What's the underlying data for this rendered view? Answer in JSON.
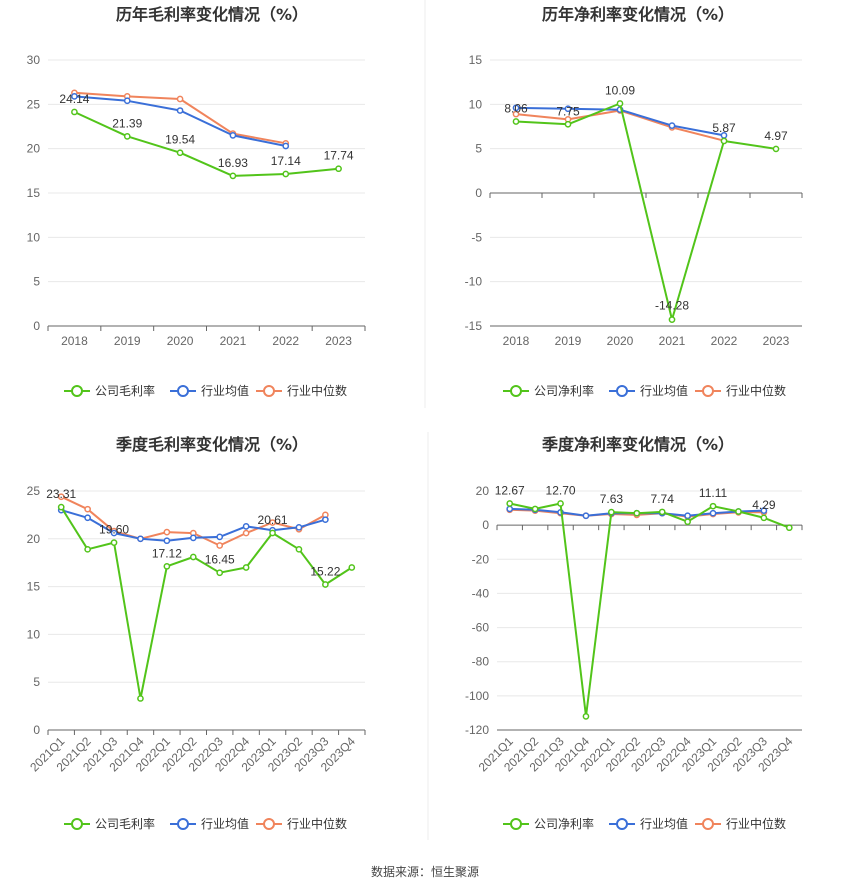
{
  "source": "数据来源：恒生聚源",
  "colors": {
    "company": "#52c41a",
    "avg": "#3a6fd8",
    "median": "#f0845c",
    "grid": "#e8e8e8",
    "axis": "#666666",
    "divider": "#eeeeee"
  },
  "legend_labels": {
    "gross_company": "公司毛利率",
    "net_company": "公司净利率",
    "avg": "行业均值",
    "median": "行业中位数"
  },
  "chart_data": [
    {
      "id": "annual-gross",
      "type": "line",
      "title": "历年毛利率变化情况（%）",
      "categories": [
        "2018",
        "2019",
        "2020",
        "2021",
        "2022",
        "2023"
      ],
      "ylim": [
        0,
        30
      ],
      "yticks": [
        0,
        5,
        10,
        15,
        20,
        25,
        30
      ],
      "grid": true,
      "legend": "bottom",
      "series": [
        {
          "key": "company",
          "name": "公司毛利率",
          "values": [
            24.14,
            21.39,
            19.54,
            16.93,
            17.14,
            17.74
          ],
          "labels": [
            "24.14",
            "21.39",
            "19.54",
            "16.93",
            "17.14",
            "17.74"
          ]
        },
        {
          "key": "avg",
          "name": "行业均值",
          "values": [
            25.9,
            25.4,
            24.3,
            21.5,
            20.3,
            null
          ]
        },
        {
          "key": "median",
          "name": "行业中位数",
          "values": [
            26.3,
            25.9,
            25.6,
            21.7,
            20.6,
            null
          ]
        }
      ]
    },
    {
      "id": "annual-net",
      "type": "line",
      "title": "历年净利率变化情况（%）",
      "categories": [
        "2018",
        "2019",
        "2020",
        "2021",
        "2022",
        "2023"
      ],
      "ylim": [
        -15,
        15
      ],
      "yticks": [
        -15,
        -10,
        -5,
        0,
        5,
        10,
        15
      ],
      "grid": true,
      "legend": "bottom",
      "series": [
        {
          "key": "company",
          "name": "公司净利率",
          "values": [
            8.06,
            7.75,
            10.09,
            -14.28,
            5.87,
            4.97
          ],
          "labels": [
            "8.06",
            "7.75",
            "10.09",
            "-14.28",
            "5.87",
            "4.97"
          ]
        },
        {
          "key": "avg",
          "name": "行业均值",
          "values": [
            9.6,
            9.5,
            9.4,
            7.6,
            6.5,
            null
          ]
        },
        {
          "key": "median",
          "name": "行业中位数",
          "values": [
            8.9,
            8.3,
            9.3,
            7.4,
            5.9,
            null
          ]
        }
      ]
    },
    {
      "id": "quarterly-gross",
      "type": "line",
      "title": "季度毛利率变化情况（%）",
      "categories": [
        "2021Q1",
        "2021Q2",
        "2021Q3",
        "2021Q4",
        "2022Q1",
        "2022Q2",
        "2022Q3",
        "2022Q4",
        "2023Q1",
        "2023Q2",
        "2023Q3",
        "2023Q4"
      ],
      "ylim": [
        0,
        25
      ],
      "yticks": [
        0,
        5,
        10,
        15,
        20,
        25
      ],
      "grid": true,
      "legend": "bottom",
      "series": [
        {
          "key": "company",
          "name": "公司毛利率",
          "values": [
            23.31,
            18.9,
            19.6,
            3.3,
            17.12,
            18.1,
            16.45,
            17.0,
            20.61,
            18.9,
            15.22,
            17.0
          ],
          "labels": [
            "23.31",
            "",
            "19.60",
            "",
            "17.12",
            "",
            "16.45",
            "",
            "20.61",
            "",
            "15.22",
            ""
          ]
        },
        {
          "key": "avg",
          "name": "行业均值",
          "values": [
            23.0,
            22.2,
            20.6,
            20.0,
            19.8,
            20.1,
            20.2,
            21.3,
            20.9,
            21.2,
            22.0,
            null
          ]
        },
        {
          "key": "median",
          "name": "行业中位数",
          "values": [
            24.4,
            23.1,
            20.8,
            20.0,
            20.7,
            20.6,
            19.3,
            20.6,
            21.7,
            21.0,
            22.5,
            null
          ]
        }
      ]
    },
    {
      "id": "quarterly-net",
      "type": "line",
      "title": "季度净利率变化情况（%）",
      "categories": [
        "2021Q1",
        "2021Q2",
        "2021Q3",
        "2021Q4",
        "2022Q1",
        "2022Q2",
        "2022Q3",
        "2022Q4",
        "2023Q1",
        "2023Q2",
        "2023Q3",
        "2023Q4"
      ],
      "ylim": [
        -120,
        20
      ],
      "yticks": [
        -120,
        -100,
        -80,
        -60,
        -40,
        -20,
        0,
        20
      ],
      "grid": true,
      "legend": "bottom",
      "series": [
        {
          "key": "company",
          "name": "公司净利率",
          "values": [
            12.67,
            9.5,
            12.7,
            -112.0,
            7.63,
            7.0,
            7.74,
            2.0,
            11.11,
            8.0,
            4.29,
            -1.5
          ],
          "labels": [
            "12.67",
            "",
            "12.70",
            "",
            "7.63",
            "",
            "7.74",
            "",
            "11.11",
            "",
            "4.29",
            ""
          ]
        },
        {
          "key": "avg",
          "name": "行业均值",
          "values": [
            9.5,
            9.0,
            7.5,
            5.5,
            7.0,
            7.0,
            7.0,
            5.5,
            7.0,
            8.0,
            8.5,
            null
          ]
        },
        {
          "key": "median",
          "name": "行业中位数",
          "values": [
            9.0,
            8.5,
            7.0,
            5.5,
            6.5,
            6.0,
            7.0,
            5.0,
            6.5,
            7.5,
            7.5,
            null
          ]
        }
      ]
    }
  ]
}
